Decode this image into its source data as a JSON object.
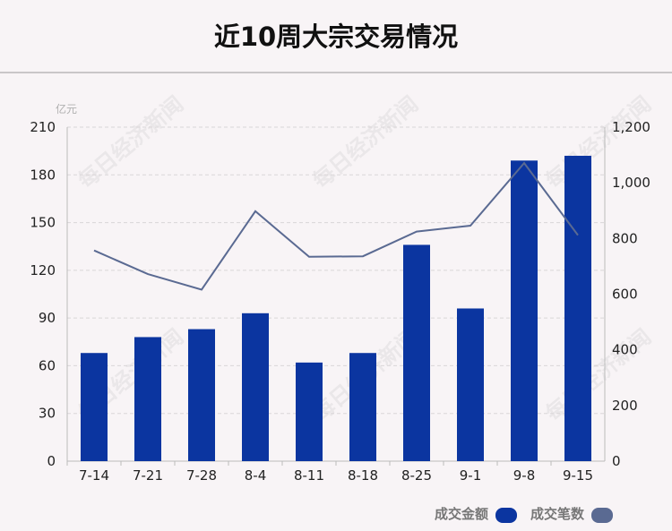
{
  "title": "近10周大宗交易情况",
  "watermark": "每日经济新闻",
  "colors": {
    "bar": "#0b35a0",
    "line": "#5a6a92",
    "grid": "#d9d6d8",
    "axis": "#bbbbbb"
  },
  "chart_data": {
    "type": "bar+line",
    "categories": [
      "7-14",
      "7-21",
      "7-28",
      "8-4",
      "8-11",
      "8-18",
      "8-25",
      "9-1",
      "9-8",
      "9-15"
    ],
    "y_left": {
      "unit_label": "亿元",
      "ticks": [
        "0",
        "30",
        "60",
        "90",
        "120",
        "150",
        "180",
        "210"
      ],
      "range": [
        0,
        210
      ]
    },
    "y_right": {
      "ticks": [
        "0",
        "200",
        "400",
        "600",
        "800",
        "1,000",
        "1,200"
      ],
      "range": [
        0,
        1200
      ]
    },
    "series": [
      {
        "name": "成交金额",
        "type": "bar",
        "axis": "left",
        "values": [
          68,
          78,
          83,
          93,
          62,
          68,
          136,
          96,
          189,
          192
        ]
      },
      {
        "name": "成交笔数",
        "type": "line",
        "axis": "right",
        "values": [
          757,
          672,
          616,
          898,
          734,
          736,
          825,
          846,
          1071,
          812
        ]
      }
    ],
    "legend": "bottom-right",
    "grid": true
  }
}
